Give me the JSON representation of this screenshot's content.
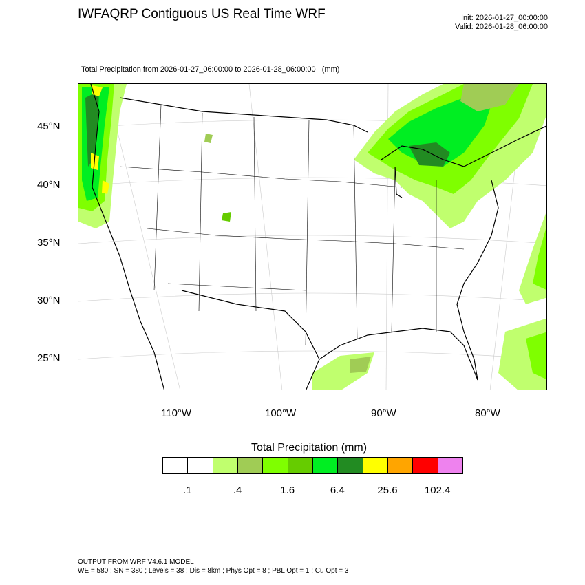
{
  "header": {
    "title": "IWFAQRP Contiguous US Real Time WRF",
    "init": "Init: 2026-01-27_00:00:00",
    "valid": "Valid: 2026-01-28_06:00:00",
    "subtitle": "Total Precipitation from 2026-01-27_06:00:00 to 2026-01-28_06:00:00   (mm)"
  },
  "map": {
    "lat_labels": [
      "45°N",
      "40°N",
      "35°N",
      "30°N",
      "25°N"
    ],
    "lon_labels": [
      "110°W",
      "100°W",
      "90°W",
      "80°W"
    ],
    "colors": {
      "land_border": "#000000",
      "grid": "#bbbbbb",
      "precip_light": "#c0ff6e",
      "precip_med": "#a0cc55",
      "precip_green": "#7fff00",
      "precip_green2": "#66cc00",
      "precip_bright": "#00ee22",
      "precip_dark": "#228b22",
      "precip_yellow": "#ffff00"
    }
  },
  "colorbar": {
    "title": "Total Precipitation  (mm)",
    "colors": [
      "#ffffff",
      "#ffffff",
      "#c0ff6e",
      "#a0cc55",
      "#7fff00",
      "#66cc00",
      "#00ee22",
      "#228b22",
      "#ffff00",
      "#ffa500",
      "#ff0000",
      "#ee82ee"
    ],
    "labels": [
      ".1",
      ".4",
      "1.6",
      "6.4",
      "25.6",
      "102.4"
    ]
  },
  "footer": {
    "line1": "OUTPUT FROM WRF V4.6.1 MODEL",
    "line2": "WE = 580 ; SN = 380 ; Levels = 38 ; Dis = 8km ; Phys Opt = 8 ; PBL Opt = 1 ; Cu Opt = 3"
  }
}
